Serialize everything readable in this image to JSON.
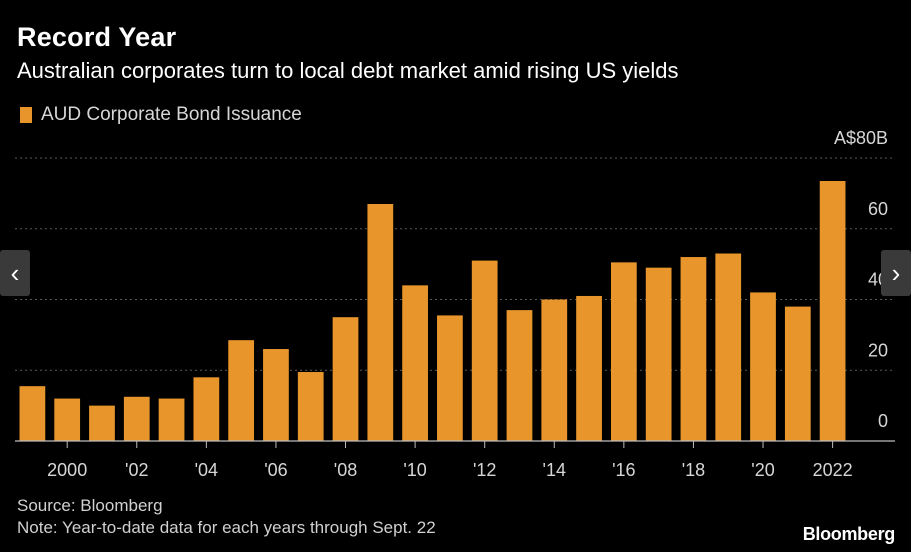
{
  "header": {
    "title": "Record Year",
    "subtitle": "Australian corporates turn to local debt market amid rising US yields"
  },
  "legend": {
    "label": "AUD Corporate Bond Issuance",
    "color": "#e8962c"
  },
  "footer": {
    "source": "Source: Bloomberg",
    "note": "Note: Year-to-date data for each years through Sept. 22",
    "brand": "Bloomberg"
  },
  "navigation": {
    "prev_icon": "chevron-left-icon",
    "next_icon": "chevron-right-icon",
    "prev_glyph": "‹",
    "next_glyph": "›"
  },
  "chart_data": {
    "type": "bar",
    "title": "Record Year",
    "subtitle": "Australian corporates turn to local debt market amid rising US yields",
    "series": [
      {
        "name": "AUD Corporate Bond Issuance",
        "color": "#e8962c",
        "values": [
          15.5,
          12,
          10,
          12.5,
          12,
          18,
          28.5,
          26,
          19.5,
          35,
          67,
          44,
          35.5,
          51,
          37,
          40,
          41,
          50.5,
          49,
          52,
          53,
          42,
          38,
          73.5
        ]
      }
    ],
    "categories": [
      "1999",
      "2000",
      "2001",
      "2002",
      "2003",
      "2004",
      "2005",
      "2006",
      "2007",
      "2008",
      "2009",
      "2010",
      "2011",
      "2012",
      "2013",
      "2014",
      "2015",
      "2016",
      "2017",
      "2018",
      "2019",
      "2020",
      "2021",
      "2022"
    ],
    "x_tick_labels": [
      {
        "year": "2000",
        "label": "2000"
      },
      {
        "year": "2002",
        "label": "'02"
      },
      {
        "year": "2004",
        "label": "'04"
      },
      {
        "year": "2006",
        "label": "'06"
      },
      {
        "year": "2008",
        "label": "'08"
      },
      {
        "year": "2010",
        "label": "'10"
      },
      {
        "year": "2012",
        "label": "'12"
      },
      {
        "year": "2014",
        "label": "'14"
      },
      {
        "year": "2016",
        "label": "'16"
      },
      {
        "year": "2018",
        "label": "'18"
      },
      {
        "year": "2020",
        "label": "'20"
      },
      {
        "year": "2022",
        "label": "2022"
      }
    ],
    "y_ticks": [
      {
        "value": 0,
        "label": "0"
      },
      {
        "value": 20,
        "label": "20"
      },
      {
        "value": 40,
        "label": "40"
      },
      {
        "value": 60,
        "label": "60"
      },
      {
        "value": 80,
        "label": "A$80B"
      }
    ],
    "ylim": [
      0,
      80
    ],
    "y_axis_side": "right",
    "grid": true,
    "legend_position": "top-left"
  }
}
